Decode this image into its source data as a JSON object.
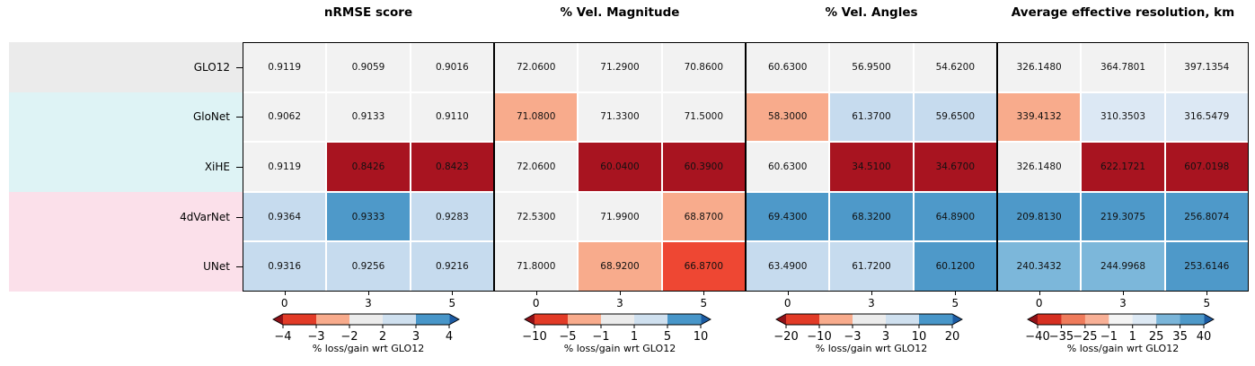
{
  "rows": [
    {
      "label": "GLO12",
      "band_color": "#ebebeb"
    },
    {
      "label": "GloNet",
      "band_color": "#def3f5"
    },
    {
      "label": "XiHE",
      "band_color": "#def3f5"
    },
    {
      "label": "4dVarNet",
      "band_color": "#fbe0ea"
    },
    {
      "label": "UNet",
      "band_color": "#fbe0ea"
    }
  ],
  "palette": {
    "neutral": "#f2f2f2",
    "dark_red": "#a81420",
    "strong_red": "#ee4733",
    "salmon": "#f8ab8c",
    "pale_blue": "#dce8f4",
    "light_blue": "#c6dbee",
    "soft_blue": "#7cb7da",
    "medium_blue": "#4e99c9",
    "arrow_low": "#8e1117",
    "arrow_high": "#1c5ba2"
  },
  "panels": [
    {
      "title": "nRMSE score",
      "x_tick_labels": [
        "0",
        "3",
        "5"
      ],
      "values": [
        [
          "0.9119",
          "0.9059",
          "0.9016"
        ],
        [
          "0.9062",
          "0.9133",
          "0.9110"
        ],
        [
          "0.9119",
          "0.8426",
          "0.8423"
        ],
        [
          "0.9364",
          "0.9333",
          "0.9283"
        ],
        [
          "0.9316",
          "0.9256",
          "0.9216"
        ]
      ],
      "cell_colors": [
        [
          "neutral",
          "neutral",
          "neutral"
        ],
        [
          "neutral",
          "neutral",
          "neutral"
        ],
        [
          "neutral",
          "dark_red",
          "dark_red"
        ],
        [
          "light_blue",
          "medium_blue",
          "light_blue"
        ],
        [
          "light_blue",
          "light_blue",
          "light_blue"
        ]
      ],
      "colorbar": {
        "tick_labels": [
          "−4",
          "−3",
          "−2",
          "2",
          "3",
          "4"
        ],
        "segments": [
          "#e23b27",
          "#f8ab8c",
          "#ececec",
          "#cfe0ef",
          "#4896c9"
        ],
        "caption": "% loss/gain wrt GLO12"
      }
    },
    {
      "title": "% Vel. Magnitude",
      "x_tick_labels": [
        "0",
        "3",
        "5"
      ],
      "values": [
        [
          "72.0600",
          "71.2900",
          "70.8600"
        ],
        [
          "71.0800",
          "71.3300",
          "71.5000"
        ],
        [
          "72.0600",
          "60.0400",
          "60.3900"
        ],
        [
          "72.5300",
          "71.9900",
          "68.8700"
        ],
        [
          "71.8000",
          "68.9200",
          "66.8700"
        ]
      ],
      "cell_colors": [
        [
          "neutral",
          "neutral",
          "neutral"
        ],
        [
          "salmon",
          "neutral",
          "neutral"
        ],
        [
          "neutral",
          "dark_red",
          "dark_red"
        ],
        [
          "neutral",
          "neutral",
          "salmon"
        ],
        [
          "neutral",
          "salmon",
          "strong_red"
        ]
      ],
      "colorbar": {
        "tick_labels": [
          "−10",
          "−5",
          "−1",
          "1",
          "5",
          "10"
        ],
        "segments": [
          "#e23b27",
          "#f8ab8c",
          "#ececec",
          "#cfe0ef",
          "#4896c9"
        ],
        "caption": "% loss/gain wrt GLO12"
      }
    },
    {
      "title": "% Vel. Angles",
      "x_tick_labels": [
        "0",
        "3",
        "5"
      ],
      "values": [
        [
          "60.6300",
          "56.9500",
          "54.6200"
        ],
        [
          "58.3000",
          "61.3700",
          "59.6500"
        ],
        [
          "60.6300",
          "34.5100",
          "34.6700"
        ],
        [
          "69.4300",
          "68.3200",
          "64.8900"
        ],
        [
          "63.4900",
          "61.7200",
          "60.1200"
        ]
      ],
      "cell_colors": [
        [
          "neutral",
          "neutral",
          "neutral"
        ],
        [
          "salmon",
          "light_blue",
          "light_blue"
        ],
        [
          "neutral",
          "dark_red",
          "dark_red"
        ],
        [
          "medium_blue",
          "medium_blue",
          "medium_blue"
        ],
        [
          "light_blue",
          "light_blue",
          "medium_blue"
        ]
      ],
      "colorbar": {
        "tick_labels": [
          "−20",
          "−10",
          "−3",
          "3",
          "10",
          "20"
        ],
        "segments": [
          "#e23b27",
          "#f8ab8c",
          "#ececec",
          "#cfe0ef",
          "#4896c9"
        ],
        "caption": "% loss/gain wrt GLO12"
      }
    },
    {
      "title": "Average effective resolution, km",
      "x_tick_labels": [
        "0",
        "3",
        "5"
      ],
      "values": [
        [
          "326.1480",
          "364.7801",
          "397.1354"
        ],
        [
          "339.4132",
          "310.3503",
          "316.5479"
        ],
        [
          "326.1480",
          "622.1721",
          "607.0198"
        ],
        [
          "209.8130",
          "219.3075",
          "256.8074"
        ],
        [
          "240.3432",
          "244.9968",
          "253.6146"
        ]
      ],
      "cell_colors": [
        [
          "neutral",
          "neutral",
          "neutral"
        ],
        [
          "salmon",
          "pale_blue",
          "pale_blue"
        ],
        [
          "neutral",
          "dark_red",
          "dark_red"
        ],
        [
          "medium_blue",
          "medium_blue",
          "medium_blue"
        ],
        [
          "soft_blue",
          "soft_blue",
          "medium_blue"
        ]
      ],
      "colorbar": {
        "tick_labels": [
          "−40",
          "−35",
          "−25",
          "−1",
          "1",
          "25",
          "35",
          "40"
        ],
        "segments": [
          "#d62f21",
          "#ef7b5b",
          "#f8b096",
          "#f4f4f4",
          "#dde9f4",
          "#7ab5d9",
          "#4e99c9"
        ],
        "caption": "% loss/gain wrt GLO12"
      }
    }
  ],
  "chart_data": {
    "type": "heatmap",
    "rows": [
      "GLO12",
      "GloNet",
      "XiHE",
      "4dVarNet",
      "UNet"
    ],
    "columns": [
      "0",
      "3",
      "5"
    ],
    "colorbar_label": "% loss/gain wrt GLO12",
    "panels": [
      {
        "title": "nRMSE score",
        "values": [
          [
            0.9119,
            0.9059,
            0.9016
          ],
          [
            0.9062,
            0.9133,
            0.911
          ],
          [
            0.9119,
            0.8426,
            0.8423
          ],
          [
            0.9364,
            0.9333,
            0.9283
          ],
          [
            0.9316,
            0.9256,
            0.9216
          ]
        ],
        "colorbar_ticks": [
          -4,
          -3,
          -2,
          2,
          3,
          4
        ]
      },
      {
        "title": "% Vel. Magnitude",
        "values": [
          [
            72.06,
            71.29,
            70.86
          ],
          [
            71.08,
            71.33,
            71.5
          ],
          [
            72.06,
            60.04,
            60.39
          ],
          [
            72.53,
            71.99,
            68.87
          ],
          [
            71.8,
            68.92,
            66.87
          ]
        ],
        "colorbar_ticks": [
          -10,
          -5,
          -1,
          1,
          5,
          10
        ]
      },
      {
        "title": "% Vel. Angles",
        "values": [
          [
            60.63,
            56.95,
            54.62
          ],
          [
            58.3,
            61.37,
            59.65
          ],
          [
            60.63,
            34.51,
            34.67
          ],
          [
            69.43,
            68.32,
            64.89
          ],
          [
            63.49,
            61.72,
            60.12
          ]
        ],
        "colorbar_ticks": [
          -20,
          -10,
          -3,
          3,
          10,
          20
        ]
      },
      {
        "title": "Average effective resolution, km",
        "values": [
          [
            326.148,
            364.7801,
            397.1354
          ],
          [
            339.4132,
            310.3503,
            316.5479
          ],
          [
            326.148,
            622.1721,
            607.0198
          ],
          [
            209.813,
            219.3075,
            256.8074
          ],
          [
            240.3432,
            244.9968,
            253.6146
          ]
        ],
        "colorbar_ticks": [
          -40,
          -35,
          -25,
          -1,
          1,
          25,
          35,
          40
        ]
      }
    ]
  }
}
